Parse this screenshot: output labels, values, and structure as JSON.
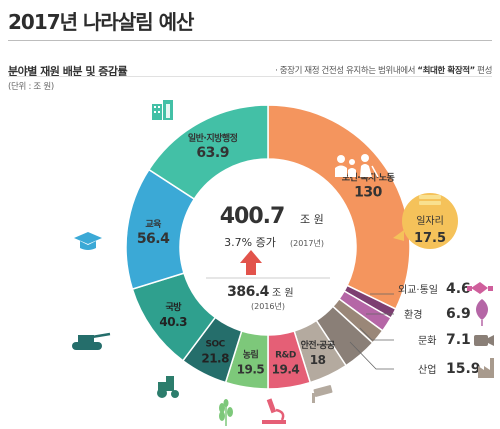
{
  "title": "2017년 나라살림 예산",
  "subtitle": "분야별 재원 배분 및 증감률",
  "unit": "(단위 : 조 원)",
  "note_prefix": "· 중장기 재정 건전성 유지하는 범위내에서 ",
  "note_strong": "“최대한 확장적”",
  "note_suffix": " 편성",
  "center": {
    "total": "400.7",
    "total_unit": "조 원",
    "increase": "3.7% 증가",
    "increase_year": "(2017년)",
    "prev": "386.4",
    "prev_unit": "조 원",
    "prev_year": "(2016년)"
  },
  "chart_data": {
    "type": "pie",
    "donut": true,
    "title": "분야별 재원 배분 및 증감률",
    "total": 400.7,
    "unit": "조 원",
    "categories": [
      "보건·복지·노동",
      "외교·통일",
      "환경",
      "문화",
      "산업",
      "안전·공공",
      "R&D",
      "농림",
      "SOC",
      "국방",
      "교육",
      "일반·지방행정"
    ],
    "values": [
      130,
      4.6,
      6.9,
      7.1,
      15.9,
      18,
      19.4,
      19.5,
      21.8,
      40.3,
      56.4,
      63.9
    ],
    "labels": [
      "130",
      "4.6",
      "6.9",
      "7.1",
      "15.9",
      "18",
      "19.4",
      "19.5",
      "21.8",
      "40.3",
      "56.4",
      "63.9"
    ],
    "colors": [
      "#f4955e",
      "#7d3f72",
      "#b566a6",
      "#9a8778",
      "#8a7f77",
      "#b4aa9f",
      "#e55f76",
      "#7dc87a",
      "#256e6b",
      "#2fa08e",
      "#3ba9d6",
      "#43c0a6"
    ],
    "highlight": {
      "label": "일자리",
      "value": "17.5",
      "parent": "보건·복지·노동"
    }
  },
  "icons": [
    "building-icon",
    "graduation-cap-icon",
    "tank-icon",
    "tractor-icon",
    "wheat-icon",
    "microscope-icon",
    "cctv-icon",
    "family-icon",
    "handshake-icon",
    "leaf-icon",
    "camera-icon",
    "factory-icon",
    "money-icon",
    "up-arrow-icon"
  ]
}
